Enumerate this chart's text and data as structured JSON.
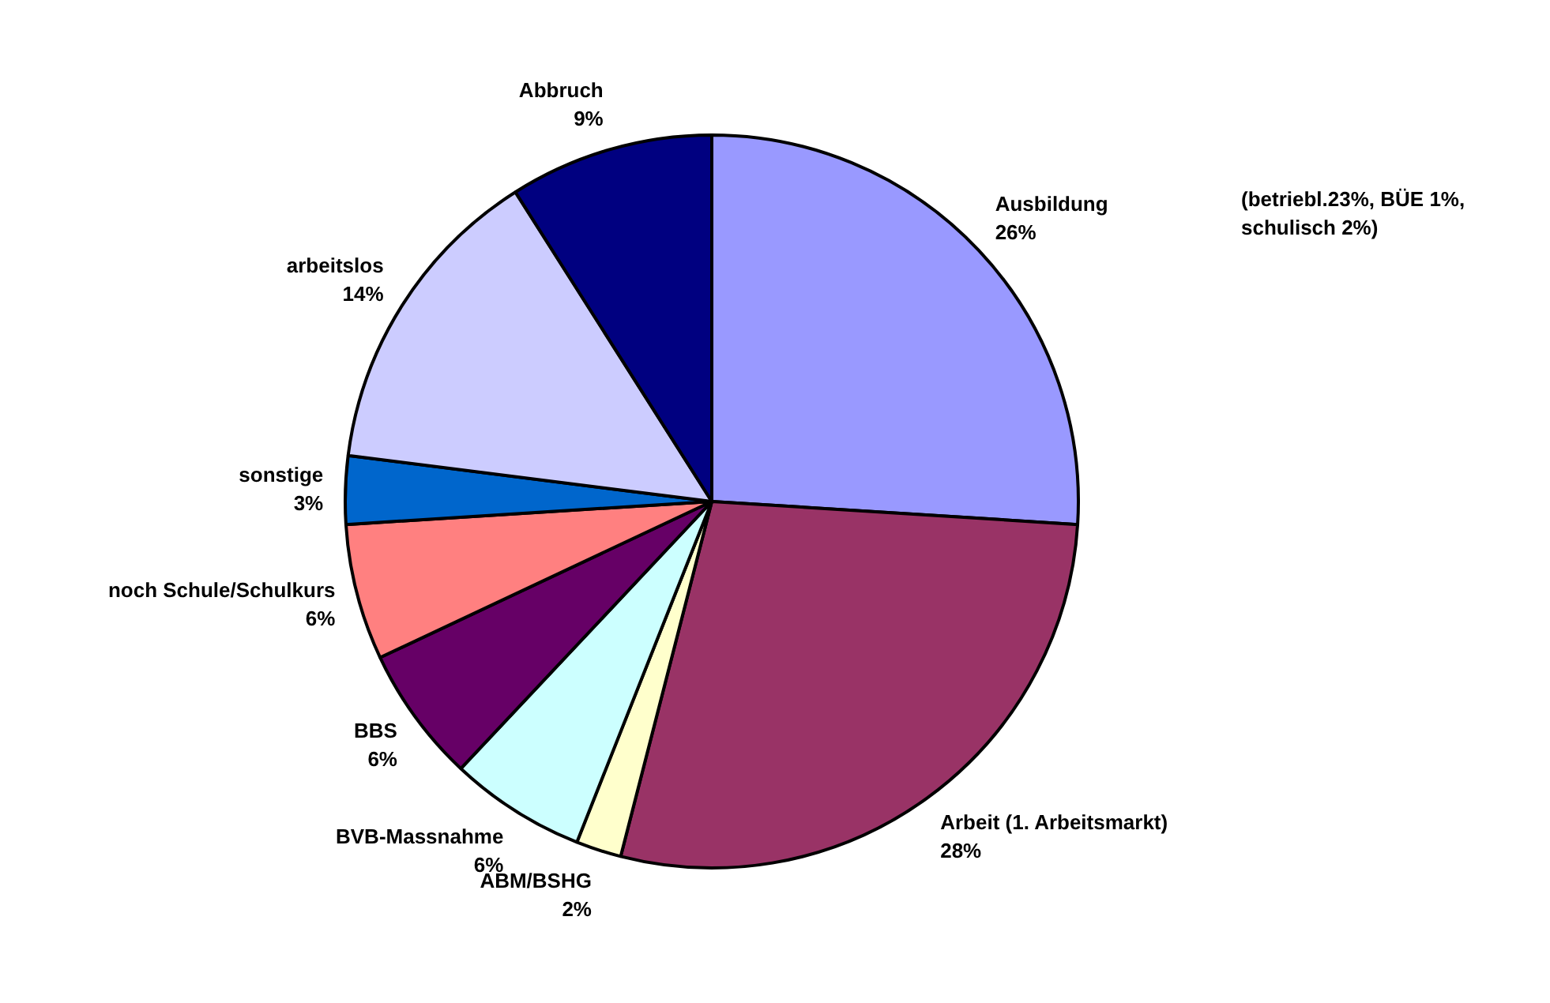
{
  "chart_data": {
    "type": "pie",
    "categories": [
      "Ausbildung",
      "Arbeit (1. Arbeitsmarkt)",
      "ABM/BSHG",
      "BVB-Massnahme",
      "BBS",
      "noch Schule/Schulkurs",
      "sonstige",
      "arbeitslos",
      "Abbruch"
    ],
    "values": [
      26,
      28,
      2,
      6,
      6,
      6,
      3,
      14,
      9
    ],
    "value_labels": [
      "26%",
      "28%",
      "2%",
      "6%",
      "6%",
      "6%",
      "3%",
      "14%",
      "9%"
    ],
    "colors": [
      "#9999ff",
      "#993366",
      "#ffffcc",
      "#ccffff",
      "#660066",
      "#ff8080",
      "#0066cc",
      "#ccccff",
      "#000080"
    ],
    "annotations": [
      "(betriebl.23%, BÜE 1%, schulisch 2%)"
    ]
  }
}
